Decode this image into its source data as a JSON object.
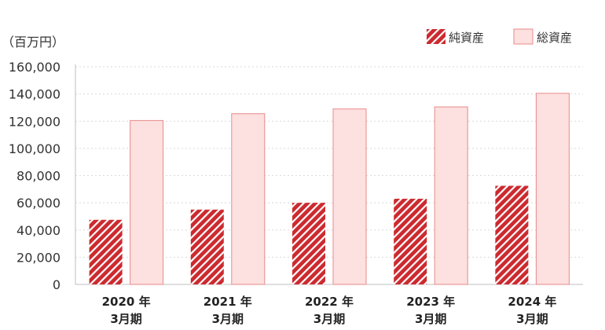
{
  "chart_data": {
    "type": "bar",
    "unit_label": "（百万円）",
    "categories": [
      [
        "2020 年",
        "3月期"
      ],
      [
        "2021 年",
        "3月期"
      ],
      [
        "2022 年",
        "3月期"
      ],
      [
        "2023 年",
        "3月期"
      ],
      [
        "2024 年",
        "3月期"
      ]
    ],
    "series": [
      {
        "name": "純資産",
        "values": [
          47500,
          55000,
          60000,
          63000,
          72500
        ],
        "color": "#cc2a2f",
        "pattern": "diagonal-stripes"
      },
      {
        "name": "総資産",
        "values": [
          120500,
          125500,
          129000,
          130500,
          140500
        ],
        "color": "#fde0e0",
        "stroke": "#e88a8a"
      }
    ],
    "ylim": [
      0,
      160000
    ],
    "yticks": [
      "0",
      "20,000",
      "40,000",
      "60,000",
      "80,000",
      "100,000",
      "120,000",
      "140,000",
      "160,000"
    ],
    "grid": true,
    "legend_position": "top-right"
  }
}
